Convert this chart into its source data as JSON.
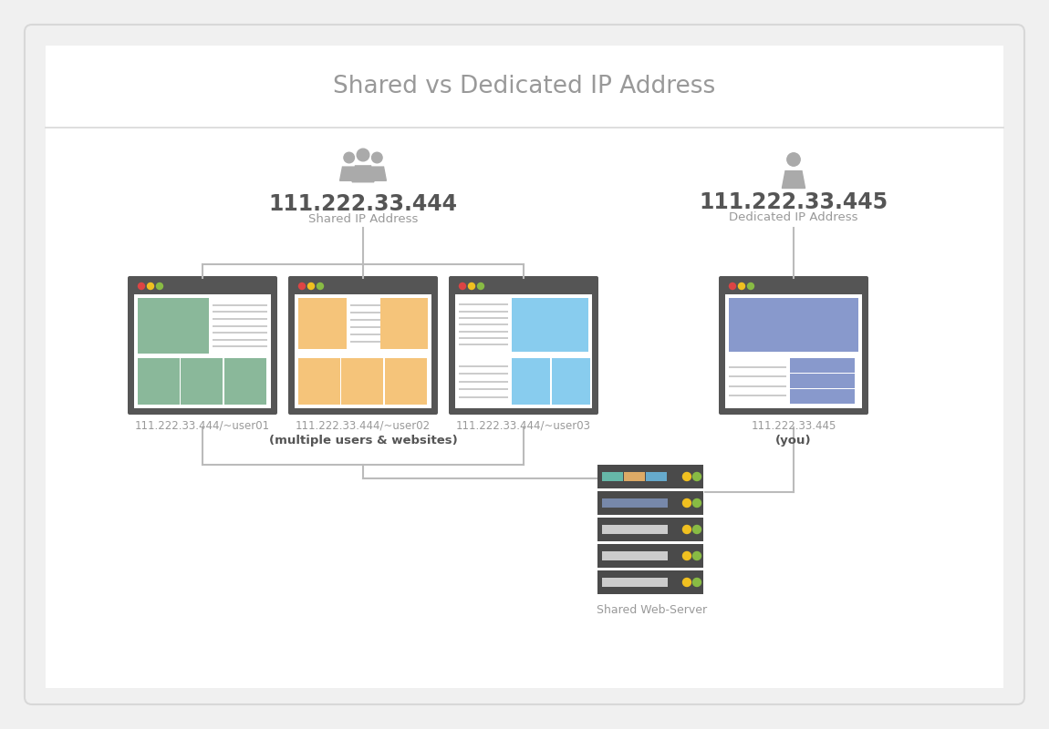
{
  "title": "Shared vs Dedicated IP Address",
  "bg_outer": "#f0f0f0",
  "bg_inner": "#ffffff",
  "border_color": "#d8d8d8",
  "title_color": "#999999",
  "text_color": "#999999",
  "dark_color": "#555555",
  "line_color": "#bbbbbb",
  "browser_bg": "#555555",
  "shared_ip": "111.222.33.444",
  "shared_label": "Shared IP Address",
  "dedicated_ip": "111.222.33.445",
  "dedicated_label": "Dedicated IP Address",
  "user01_label": "111.222.33.444/~user01",
  "user02_label": "111.222.33.444/~user02",
  "user03_label": "111.222.33.444/~user03",
  "dedicated_user_label": "111.222.33.445",
  "shared_note": "(multiple users & websites)",
  "dedicated_note": "(you)",
  "server_label": "Shared Web-Server",
  "green_color": "#8ab89a",
  "orange_color": "#f5c47a",
  "blue_color": "#88ccee",
  "purple_color": "#8899cc",
  "red_dot": "#dd4444",
  "yellow_dot": "#f0c020",
  "green_dot": "#88bb44",
  "line_gray": "#cccccc",
  "content_bg": "#ffffff",
  "line_stripe": "#cccccc"
}
